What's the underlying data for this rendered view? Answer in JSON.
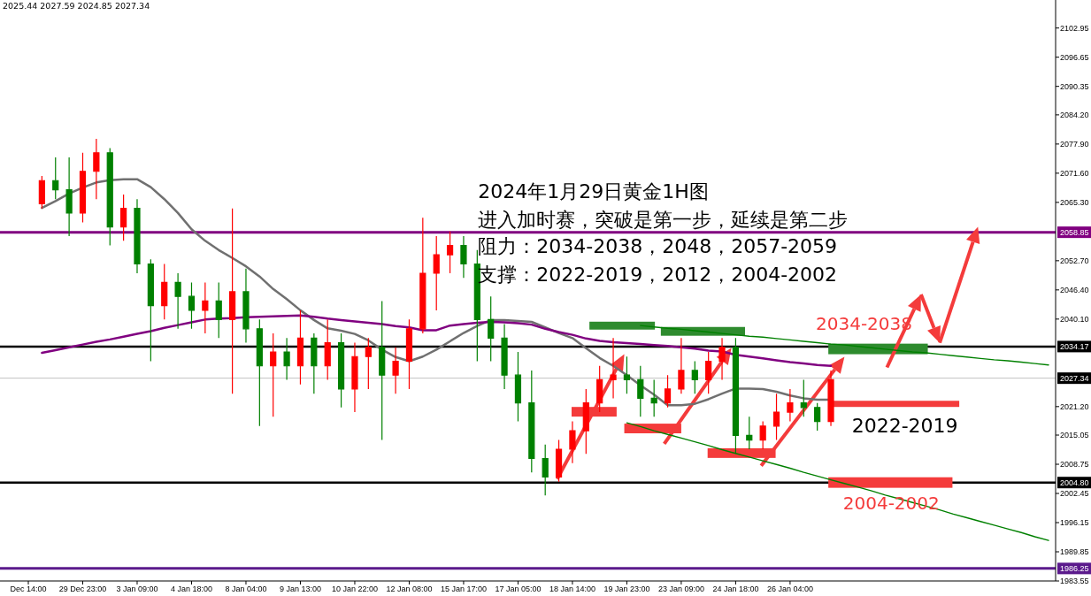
{
  "chart_data": {
    "type": "candlestick",
    "title": "2024年1月29日黄金1H图",
    "subtitle": "进入加时赛，突破是第一步，延续是第二步",
    "annotations": [
      "2025.44 2027.59 2024.85 2027.34",
      "阻力：2034-2038，2048，2057-2059",
      "支撑：2022-2019，2012，2004-2002",
      "2034-2038",
      "2022-2019",
      "2004-2002"
    ],
    "categories": [
      "Dec 14:00",
      null,
      null,
      null,
      "29 Dec 23:00",
      null,
      null,
      null,
      "3 Jan 09:00",
      null,
      null,
      null,
      "4 Jan 18:00",
      null,
      null,
      null,
      "8 Jan 04:00",
      null,
      null,
      null,
      "9 Jan 13:00",
      null,
      null,
      null,
      "10 Jan 22:00",
      null,
      null,
      null,
      "12 Jan 08:00",
      null,
      null,
      null,
      "15 Jan 17:00",
      null,
      null,
      null,
      "17 Jan 05:00",
      null,
      null,
      null,
      "18 Jan 14:00",
      null,
      null,
      null,
      "19 Jan 23:00",
      null,
      null,
      null,
      "23 Jan 09:00",
      null,
      null,
      null,
      "24 Jan 18:00",
      null,
      null,
      null,
      "26 Jan 04:00",
      null,
      null,
      null,
      null,
      null,
      null,
      null,
      null,
      null,
      null,
      null,
      null,
      null,
      null,
      null,
      null,
      null,
      null,
      null
    ],
    "ohlc": [
      null,
      [
        2065,
        2071,
        2064,
        2070
      ],
      [
        2070,
        2075,
        2066,
        2068
      ],
      [
        2068,
        2075,
        2058,
        2063
      ],
      [
        2063,
        2076,
        2061,
        2072
      ],
      [
        2072,
        2079,
        2066,
        2076
      ],
      [
        2076,
        2077,
        2056,
        2060
      ],
      [
        2060,
        2067,
        2057,
        2064
      ],
      [
        2064,
        2066,
        2050,
        2052
      ],
      [
        2052,
        2053,
        2031,
        2043
      ],
      [
        2043,
        2052,
        2040,
        2048
      ],
      [
        2048,
        2050,
        2038,
        2045
      ],
      [
        2045,
        2048,
        2038,
        2042
      ],
      [
        2042,
        2048,
        2037,
        2044
      ],
      [
        2044,
        2048,
        2036,
        2040
      ],
      [
        2040,
        2064,
        2024,
        2046
      ],
      [
        2046,
        2051,
        2035,
        2038
      ],
      [
        2038,
        2040,
        2017,
        2030
      ],
      [
        2030,
        2037,
        2019,
        2033
      ],
      [
        2033,
        2036,
        2027,
        2030
      ],
      [
        2030,
        2042,
        2026,
        2036
      ],
      [
        2036,
        2037,
        2024,
        2030
      ],
      [
        2030,
        2040,
        2027,
        2035
      ],
      [
        2035,
        2037,
        2021,
        2025
      ],
      [
        2025,
        2035,
        2020,
        2032
      ],
      [
        2032,
        2036,
        2025,
        2034
      ],
      [
        2034,
        2044,
        2014,
        2028
      ],
      [
        2028,
        2034,
        2024,
        2031
      ],
      [
        2031,
        2040,
        2025,
        2038
      ],
      [
        2038,
        2062,
        2037,
        2050
      ],
      [
        2050,
        2058,
        2042,
        2054
      ],
      [
        2054,
        2059,
        2050,
        2056
      ],
      [
        2056,
        2058,
        2049,
        2052
      ],
      [
        2052,
        2055,
        2031,
        2040
      ],
      [
        2040,
        2045,
        2031,
        2036
      ],
      [
        2036,
        2039,
        2025,
        2028
      ],
      [
        2028,
        2033,
        2018,
        2022
      ],
      [
        2022,
        2029,
        2007,
        2010
      ],
      [
        2010,
        2013,
        2002,
        2006
      ],
      [
        2006,
        2014,
        2005,
        2012
      ],
      [
        2012,
        2018,
        2009,
        2016
      ],
      [
        2016,
        2025,
        2011,
        2022
      ],
      [
        2022,
        2030,
        2020,
        2027
      ],
      [
        2027,
        2036,
        2023,
        2028
      ],
      [
        2028,
        2032,
        2024,
        2027
      ],
      [
        2027,
        2030,
        2019,
        2023
      ],
      [
        2023,
        2027,
        2019,
        2022
      ],
      [
        2022,
        2028,
        2021,
        2025
      ],
      [
        2025,
        2036,
        2024,
        2029
      ],
      [
        2029,
        2031,
        2024,
        2027
      ],
      [
        2027,
        2033,
        2024,
        2031
      ],
      [
        2031,
        2036,
        2027,
        2034
      ],
      [
        2034,
        2036,
        2011,
        2015
      ],
      [
        2015,
        2019,
        2012,
        2014
      ],
      [
        2014,
        2018,
        2012,
        2017
      ],
      [
        2017,
        2024,
        2014,
        2020
      ],
      [
        2020,
        2025,
        2018,
        2022
      ],
      [
        2022,
        2027,
        2019,
        2021
      ],
      [
        2021,
        2022,
        2016,
        2018
      ],
      [
        2018,
        2029,
        2017,
        2027
      ],
      null,
      null,
      null,
      null,
      null,
      null,
      null,
      null,
      null,
      null,
      null,
      null,
      null,
      null,
      null,
      null
    ],
    "colors": [
      null,
      "#ff0000",
      "#008000",
      "#008000",
      "#ff0000",
      "#ff0000",
      "#008000",
      "#ff0000",
      "#008000",
      "#008000",
      "#ff0000",
      "#008000",
      "#008000",
      "#ff0000",
      "#008000",
      "#ff0000",
      "#008000",
      "#008000",
      "#ff0000",
      "#008000",
      "#ff0000",
      "#008000",
      "#ff0000",
      "#008000",
      "#ff0000",
      "#ff0000",
      "#008000",
      "#ff0000",
      "#ff0000",
      "#ff0000",
      "#ff0000",
      "#ff0000",
      "#008000",
      "#008000",
      "#008000",
      "#008000",
      "#008000",
      "#008000",
      "#008000",
      "#ff0000",
      "#ff0000",
      "#ff0000",
      "#ff0000",
      "#ff0000",
      "#008000",
      "#008000",
      "#008000",
      "#ff0000",
      "#ff0000",
      "#008000",
      "#ff0000",
      "#ff0000",
      "#008000",
      "#008000",
      "#ff0000",
      "#ff0000",
      "#ff0000",
      "#008000",
      "#008000",
      "#ff0000",
      null,
      null,
      null,
      null,
      null,
      null,
      null,
      null,
      null,
      null,
      null,
      null,
      null,
      null,
      null,
      null
    ],
    "series": [
      {
        "type": "line",
        "color": "#707070",
        "values": [
          null,
          2064.1,
          2065.6,
          2067.2,
          2068.5,
          2069.6,
          2070.1,
          2070.3,
          2070.3,
          2068.6,
          2066.0,
          2063.0,
          2059.5,
          2057.0,
          2055.0,
          2053.3,
          2051.5,
          2049.3,
          2046.6,
          2044.4,
          2042.0,
          2039.9,
          2038.1,
          2037.6,
          2036.9,
          2035.5,
          2033.5,
          2031.9,
          2031.0,
          2032.0,
          2033.5,
          2035.3,
          2037.1,
          2038.6,
          2039.9,
          2039.9,
          2039.7,
          2039.5,
          2038.3,
          2037.1,
          2036.0,
          2033.8,
          2031.7,
          2030.0,
          2028.0,
          2025.8,
          2023.8,
          2021.5,
          2021.5,
          2021.8,
          2022.8,
          2024.0,
          2025.1,
          2025.1,
          2025.0,
          2024.4,
          2023.6,
          2023.0,
          2022.7,
          2022.7,
          null,
          null,
          null,
          null,
          null,
          null,
          null,
          null,
          null,
          null,
          null,
          null,
          null,
          null,
          null,
          null
        ]
      },
      {
        "type": "line",
        "color": "#800080",
        "values": [
          null,
          2032.8,
          2033.4,
          2034.0,
          2034.6,
          2035.2,
          2035.7,
          2036.3,
          2036.9,
          2037.5,
          2038.2,
          2038.8,
          2039.4,
          2040.0,
          2040.2,
          2040.3,
          2040.5,
          2040.6,
          2040.7,
          2040.8,
          2040.9,
          2040.6,
          2040.2,
          2039.9,
          2039.6,
          2039.3,
          2039.0,
          2038.6,
          2038.3,
          2037.7,
          2037.7,
          2038.7,
          2039.0,
          2039.3,
          2039.5,
          2039.4,
          2039.2,
          2038.9,
          2038.0,
          2037.3,
          2036.7,
          2035.9,
          2035.4,
          2035.1,
          2034.9,
          2034.7,
          2034.5,
          2034.3,
          2034.0,
          2033.7,
          2033.3,
          2033.1,
          2032.4,
          2032.0,
          2031.6,
          2031.2,
          2030.8,
          2030.5,
          2030.2,
          2030.0,
          null,
          null,
          null,
          null,
          null,
          null,
          null,
          null,
          null,
          null,
          null,
          null,
          null,
          null,
          null,
          null
        ]
      },
      {
        "type": "line",
        "color": "#008000",
        "values": [
          null,
          null,
          null,
          null,
          null,
          null,
          null,
          null,
          null,
          null,
          null,
          null,
          null,
          null,
          null,
          null,
          null,
          null,
          null,
          null,
          null,
          null,
          null,
          null,
          null,
          null,
          null,
          null,
          null,
          null,
          null,
          null,
          null,
          null,
          null,
          null,
          null,
          null,
          null,
          null,
          null,
          null,
          null,
          null,
          null,
          2038.7,
          2038.4,
          2038.1,
          2037.9,
          2037.6,
          2037.3,
          2037.0,
          2036.7,
          2036.4,
          2036.2,
          2035.9,
          2035.6,
          2035.3,
          2035.0,
          2034.7,
          2034.5,
          2034.2,
          2033.9,
          2033.6,
          2033.3,
          2033.0,
          2032.8,
          2032.5,
          2032.2,
          2031.9,
          2031.6,
          2031.3,
          2031.1,
          2030.8,
          2030.5,
          2030.2
        ]
      },
      {
        "type": "line",
        "color": "#008000",
        "values": [
          null,
          null,
          null,
          null,
          null,
          null,
          null,
          null,
          null,
          null,
          null,
          null,
          null,
          null,
          null,
          null,
          null,
          null,
          null,
          null,
          null,
          null,
          null,
          null,
          null,
          null,
          null,
          null,
          null,
          null,
          null,
          null,
          null,
          null,
          null,
          null,
          null,
          null,
          null,
          null,
          null,
          null,
          null,
          null,
          2017.7,
          2016.9,
          2016.0,
          2015.2,
          2014.4,
          2013.6,
          2012.8,
          2011.9,
          2011.1,
          2010.3,
          2009.5,
          2008.7,
          2007.9,
          2007.0,
          2006.2,
          2005.4,
          2004.6,
          2003.8,
          2003.0,
          2002.1,
          2001.3,
          2000.5,
          1999.7,
          1998.9,
          1998.0,
          1997.2,
          1996.4,
          1995.6,
          1994.8,
          1994.0,
          1993.1,
          1992.3
        ]
      }
    ],
    "ylim": [
      1983.55,
      2109.0
    ],
    "yticks": [
      1983.55,
      1989.85,
      1996.15,
      2002.45,
      2008.75,
      2015.05,
      {
        "value": 2021.2,
        "label": "2021.20"
      },
      {
        "value": 2040.1,
        "label": "2040.10"
      },
      {
        "value": 2046.4,
        "label": "2046.40"
      },
      {
        "value": 2052.7,
        "label": "2052.70"
      },
      {
        "value": 2065.3,
        "label": "2065.30"
      },
      {
        "value": 2071.6,
        "label": "2071.60"
      },
      {
        "value": 2077.9,
        "label": "2077.90"
      },
      {
        "value": 2084.2,
        "label": "2084.20"
      },
      2090.35,
      2096.65,
      2102.95
    ],
    "ref_lines": [
      {
        "axis": "y",
        "value": 2058.85,
        "label": "2058.85",
        "color": "#800080"
      },
      {
        "axis": "y",
        "value": 2034.17,
        "label": "2034.17",
        "color": "#000000"
      },
      {
        "axis": "y",
        "value": 2027.34,
        "label": "2027.34",
        "color": "#c0c0c0"
      },
      {
        "axis": "y",
        "value": 2004.8,
        "label": "2004.80",
        "color": "#000000"
      },
      {
        "axis": "y",
        "value": 1986.25,
        "label": "1986.25",
        "color": "#5b1a8c"
      }
    ]
  }
}
